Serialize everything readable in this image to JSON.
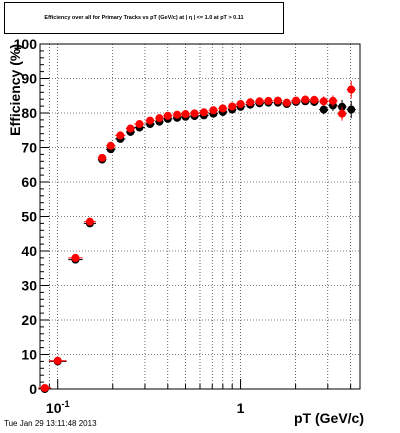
{
  "chart_data": {
    "type": "scatter",
    "title": "Efficiency over all for Primary Tracks vs pT (GeV/c) at | η | <= 1.0 at pT > 0.11",
    "xlabel": "pT (GeV/c)",
    "ylabel": "Efficiency (%)",
    "xscale": "log",
    "xlim": [
      0.08,
      4.5
    ],
    "ylim": [
      0,
      100
    ],
    "grid": true,
    "y_ticks": [
      0,
      10,
      20,
      30,
      40,
      50,
      60,
      70,
      80,
      90,
      100
    ],
    "y_tick_labels": [
      "0",
      "10",
      "20",
      "30",
      "40",
      "50",
      "60",
      "70",
      "80",
      "90",
      "100"
    ],
    "x_tick_labels": [
      {
        "value": 0.1,
        "base": "10",
        "exp": "-1"
      },
      {
        "value": 1,
        "base": "1",
        "exp": ""
      }
    ],
    "series": [
      {
        "color": "#000000",
        "x": [
          0.085,
          0.1,
          0.125,
          0.15,
          0.175,
          0.195,
          0.22,
          0.25,
          0.28,
          0.32,
          0.36,
          0.4,
          0.45,
          0.5,
          0.56,
          0.63,
          0.71,
          0.8,
          0.9,
          1.0,
          1.13,
          1.27,
          1.42,
          1.6,
          1.79,
          2.01,
          2.26,
          2.53,
          2.85,
          3.2,
          3.59,
          4.03
        ],
        "y": [
          0.0,
          8.0,
          37.5,
          48.0,
          66.5,
          69.5,
          72.5,
          74.5,
          75.8,
          76.8,
          77.5,
          78.3,
          78.6,
          78.9,
          79.1,
          79.3,
          79.8,
          80.3,
          81.0,
          81.8,
          82.4,
          82.8,
          83.0,
          83.0,
          82.6,
          83.2,
          83.4,
          83.2,
          81.0,
          82.2,
          81.8,
          81.0
        ],
        "yerr": [
          0.3,
          0.5,
          0.8,
          0.8,
          0.8,
          0.6,
          0.4,
          0.3,
          0.3,
          0.3,
          0.3,
          0.3,
          0.3,
          0.3,
          0.3,
          0.3,
          0.3,
          0.3,
          0.3,
          0.4,
          0.4,
          0.5,
          0.6,
          0.6,
          0.7,
          0.8,
          1.0,
          1.2,
          1.4,
          1.6,
          2.0,
          2.5
        ]
      },
      {
        "color": "#ff0000",
        "x": [
          0.085,
          0.1,
          0.125,
          0.15,
          0.175,
          0.195,
          0.22,
          0.25,
          0.28,
          0.32,
          0.36,
          0.4,
          0.45,
          0.5,
          0.56,
          0.63,
          0.71,
          0.8,
          0.9,
          1.0,
          1.13,
          1.27,
          1.42,
          1.6,
          1.79,
          2.01,
          2.26,
          2.53,
          2.85,
          3.2,
          3.59,
          4.03
        ],
        "y": [
          0.3,
          8.2,
          38.0,
          48.5,
          67.0,
          70.5,
          73.5,
          75.5,
          76.8,
          77.8,
          78.5,
          79.2,
          79.5,
          79.7,
          79.9,
          80.2,
          80.8,
          81.3,
          81.9,
          82.6,
          83.1,
          83.4,
          83.5,
          83.6,
          83.0,
          83.6,
          83.9,
          83.8,
          83.4,
          83.5,
          79.8,
          86.8
        ],
        "yerr": [
          0.3,
          0.5,
          0.8,
          0.8,
          0.8,
          0.6,
          0.4,
          0.3,
          0.3,
          0.3,
          0.3,
          0.3,
          0.3,
          0.3,
          0.3,
          0.3,
          0.3,
          0.3,
          0.3,
          0.4,
          0.4,
          0.5,
          0.6,
          0.6,
          0.7,
          0.8,
          1.0,
          1.2,
          1.4,
          1.6,
          2.0,
          2.5
        ]
      }
    ]
  },
  "timestamp": "Tue Jan 29 13:11:48 2013"
}
